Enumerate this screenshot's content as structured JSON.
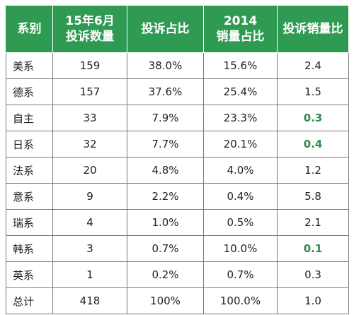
{
  "colors": {
    "header_bg": "#2e9a52",
    "header_text": "#ffffff",
    "highlight_text": "#2e8b4c",
    "grid": "#7a7a7a"
  },
  "chart_data": {
    "type": "table",
    "columns": [
      {
        "key": "category",
        "lines": [
          "系别"
        ]
      },
      {
        "key": "complaints",
        "lines": [
          "15年6月",
          "投诉数量"
        ]
      },
      {
        "key": "complaint_share",
        "lines": [
          "投诉占比"
        ]
      },
      {
        "key": "sales_share",
        "lines": [
          "2014",
          "销量占比"
        ]
      },
      {
        "key": "complaint_sales_ratio",
        "lines": [
          "投诉销量比"
        ]
      }
    ],
    "rows": [
      {
        "category": "美系",
        "complaints": "159",
        "complaint_share": "38.0%",
        "sales_share": "15.6%",
        "complaint_sales_ratio": "2.4",
        "highlight": false
      },
      {
        "category": "德系",
        "complaints": "157",
        "complaint_share": "37.6%",
        "sales_share": "25.4%",
        "complaint_sales_ratio": "1.5",
        "highlight": false
      },
      {
        "category": "自主",
        "complaints": "33",
        "complaint_share": "7.9%",
        "sales_share": "23.3%",
        "complaint_sales_ratio": "0.3",
        "highlight": true
      },
      {
        "category": "日系",
        "complaints": "32",
        "complaint_share": "7.7%",
        "sales_share": "20.1%",
        "complaint_sales_ratio": "0.4",
        "highlight": true
      },
      {
        "category": "法系",
        "complaints": "20",
        "complaint_share": "4.8%",
        "sales_share": "4.0%",
        "complaint_sales_ratio": "1.2",
        "highlight": false
      },
      {
        "category": "意系",
        "complaints": "9",
        "complaint_share": "2.2%",
        "sales_share": "0.4%",
        "complaint_sales_ratio": "5.8",
        "highlight": false
      },
      {
        "category": "瑞系",
        "complaints": "4",
        "complaint_share": "1.0%",
        "sales_share": "0.5%",
        "complaint_sales_ratio": "2.1",
        "highlight": false
      },
      {
        "category": "韩系",
        "complaints": "3",
        "complaint_share": "0.7%",
        "sales_share": "10.0%",
        "complaint_sales_ratio": "0.1",
        "highlight": true
      },
      {
        "category": "英系",
        "complaints": "1",
        "complaint_share": "0.2%",
        "sales_share": "0.7%",
        "complaint_sales_ratio": "0.3",
        "highlight": false
      },
      {
        "category": "总计",
        "complaints": "418",
        "complaint_share": "100%",
        "sales_share": "100.0%",
        "complaint_sales_ratio": "1.0",
        "highlight": false
      }
    ]
  }
}
